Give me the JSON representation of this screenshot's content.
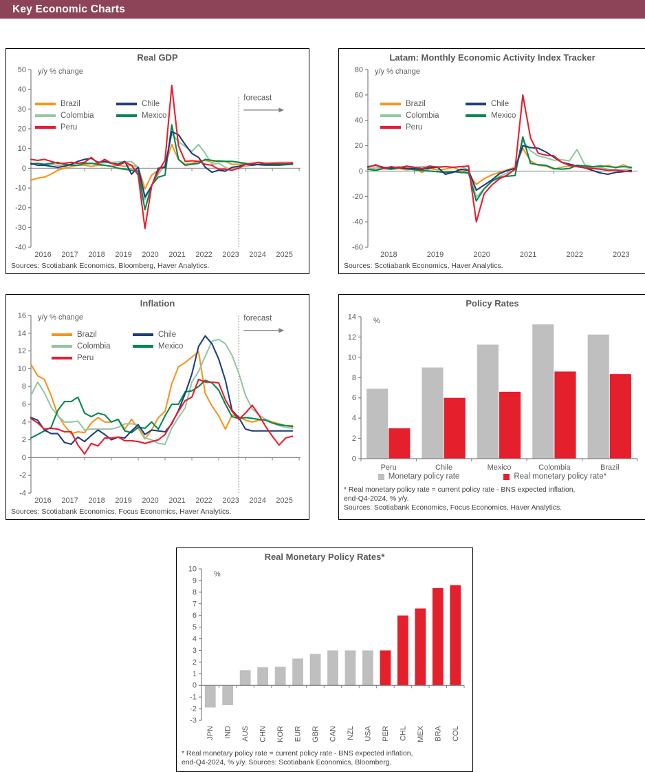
{
  "header": {
    "title": "Key Economic Charts",
    "bg_color": "#8E4458"
  },
  "colors": {
    "brazil": "#F7941E",
    "chile": "#1F3E7D",
    "colombia": "#94C7A4",
    "mexico": "#00894F",
    "peru": "#EB1C2D",
    "gray_bar": "#BFBFBF",
    "red_bar": "#E3202C"
  },
  "chart_data": [
    {
      "type": "line",
      "title": "Real GDP",
      "unit_label": "y/y % change",
      "source": "Sources: Scotiabank Economics, Bloomberg, Haver Analytics.",
      "x0": 2016.0,
      "dx": 0.25,
      "xlim": [
        2016.0,
        2026.05
      ],
      "ylim": [
        -40,
        50
      ],
      "ytick_step": 10,
      "x_years_labeled": [
        2016,
        2017,
        2018,
        2019,
        2020,
        2021,
        2022,
        2023,
        2024,
        2025
      ],
      "forecast": {
        "x": 2023.75,
        "label": "forecast",
        "label_y": 34.5,
        "arrow_y": 29.5,
        "top_y": 36
      },
      "legend": [
        {
          "label": "Brazil",
          "color": "#F7941E"
        },
        {
          "label": "Chile",
          "color": "#1F3E7D"
        },
        {
          "label": "Colombia",
          "color": "#94C7A4"
        },
        {
          "label": "Mexico",
          "color": "#00894F"
        },
        {
          "label": "Peru",
          "color": "#EB1C2D"
        }
      ],
      "series": [
        {
          "name": "Brazil",
          "color": "#F7941E",
          "values": [
            -6.0,
            -5.0,
            -4.5,
            -3.0,
            -1.0,
            0.0,
            0.8,
            1.5,
            1.5,
            1.0,
            1.5,
            1.5,
            1.0,
            1.5,
            1.0,
            1.5,
            0.5,
            -10.5,
            -3.5,
            -1.0,
            1.5,
            12.0,
            4.5,
            2.0,
            2.5,
            3.5,
            4.0,
            3.0,
            4.0,
            3.5,
            2.0,
            2.0,
            2.5,
            2.0,
            2.0,
            2.0,
            2.0,
            2.0,
            2.0,
            2.2
          ]
        },
        {
          "name": "Colombia",
          "color": "#94C7A4",
          "values": [
            2.5,
            2.5,
            1.5,
            2.0,
            1.5,
            1.5,
            2.0,
            1.5,
            2.0,
            2.5,
            2.5,
            2.8,
            3.0,
            3.2,
            3.2,
            3.4,
            0.5,
            -16.0,
            -8.5,
            -3.0,
            1.5,
            17.5,
            13.5,
            11.0,
            8.5,
            12.0,
            7.5,
            2.0,
            2.5,
            0.5,
            -1.0,
            1.0,
            1.0,
            1.5,
            2.0,
            2.5,
            2.8,
            3.0,
            3.0,
            3.0
          ]
        },
        {
          "name": "Mexico",
          "color": "#00894F",
          "values": [
            2.0,
            2.5,
            2.0,
            2.5,
            3.0,
            2.0,
            1.5,
            1.5,
            2.5,
            2.5,
            2.0,
            1.5,
            1.0,
            0.0,
            -0.5,
            -1.0,
            -1.5,
            -21.0,
            -8.5,
            -4.5,
            -3.5,
            22.0,
            4.5,
            1.5,
            2.0,
            2.5,
            4.5,
            4.0,
            3.5,
            3.5,
            3.5,
            3.0,
            2.5,
            2.0,
            1.8,
            1.5,
            1.5,
            1.5,
            1.8,
            2.0
          ]
        },
        {
          "name": "Chile",
          "color": "#1F3E7D",
          "values": [
            2.5,
            1.5,
            1.5,
            1.0,
            0.5,
            1.0,
            2.0,
            3.5,
            4.5,
            5.0,
            3.0,
            3.5,
            2.5,
            2.0,
            3.5,
            -3.0,
            0.5,
            -14.5,
            -9.0,
            0.0,
            0.5,
            18.5,
            17.0,
            12.0,
            7.5,
            5.5,
            0.5,
            -2.0,
            -1.0,
            -1.5,
            0.5,
            1.0,
            2.0,
            1.5,
            2.0,
            2.0,
            2.0,
            2.2,
            2.3,
            2.4
          ]
        },
        {
          "name": "Peru",
          "color": "#EB1C2D",
          "values": [
            4.5,
            4.0,
            4.5,
            3.5,
            2.5,
            2.5,
            3.0,
            2.5,
            3.0,
            5.5,
            2.5,
            4.5,
            2.5,
            1.5,
            3.0,
            1.5,
            -3.5,
            -30.5,
            -9.0,
            -1.5,
            4.0,
            42.0,
            11.5,
            3.5,
            3.8,
            3.5,
            2.0,
            1.5,
            -0.5,
            -0.5,
            -1.0,
            0.0,
            2.0,
            2.5,
            3.0,
            2.5,
            2.5,
            2.5,
            2.5,
            2.7
          ]
        }
      ]
    },
    {
      "type": "line",
      "title": "Latam: Monthly Economic Activity Index Tracker",
      "unit_label": "y/y % change",
      "source": "Sources: Scotiabank Economics, Haver Analytics.",
      "x0": 2018.0,
      "dx": 0.16667,
      "xlim": [
        2018.0,
        2023.8
      ],
      "ylim": [
        -60,
        80
      ],
      "ytick_step": 20,
      "x_years_labeled": [
        2018,
        2019,
        2020,
        2021,
        2022,
        2023
      ],
      "forecast": null,
      "legend": [
        {
          "label": "Brazil",
          "color": "#F7941E"
        },
        {
          "label": "Chile",
          "color": "#1F3E7D"
        },
        {
          "label": "Colombia",
          "color": "#94C7A4"
        },
        {
          "label": "Mexico",
          "color": "#00894F"
        },
        {
          "label": "Peru",
          "color": "#EB1C2D"
        }
      ],
      "series": [
        {
          "name": "Brazil",
          "color": "#F7941E",
          "values": [
            2.0,
            1.0,
            2.5,
            1.5,
            2.0,
            1.0,
            1.5,
            -1.0,
            2.0,
            1.0,
            1.5,
            3.0,
            0.5,
            -2.0,
            -10.5,
            -6.0,
            -3.0,
            -1.0,
            1.0,
            3.0,
            18.0,
            8.0,
            4.5,
            4.0,
            1.5,
            3.0,
            4.0,
            3.5,
            3.0,
            2.5,
            3.0,
            4.5,
            2.5,
            5.0,
            2.0
          ]
        },
        {
          "name": "Colombia",
          "color": "#94C7A4",
          "values": [
            2.0,
            2.5,
            3.0,
            2.5,
            3.5,
            3.0,
            3.0,
            3.5,
            3.0,
            3.5,
            3.5,
            3.0,
            3.5,
            1.0,
            -20.5,
            -14.0,
            -8.0,
            -4.0,
            -1.5,
            1.0,
            24.0,
            16.0,
            12.0,
            10.5,
            8.5,
            9.0,
            8.0,
            17.0,
            5.0,
            3.5,
            2.5,
            1.5,
            0.5,
            1.0,
            2.0
          ]
        },
        {
          "name": "Mexico",
          "color": "#00894F",
          "values": [
            1.5,
            0.5,
            2.0,
            1.5,
            2.5,
            2.0,
            1.0,
            0.5,
            0.0,
            -0.5,
            -1.0,
            -0.5,
            -1.0,
            -1.5,
            -23.5,
            -14.0,
            -8.0,
            -5.0,
            -4.0,
            -3.5,
            27.0,
            6.0,
            5.0,
            4.5,
            2.0,
            1.5,
            2.0,
            4.5,
            4.0,
            3.5,
            4.0,
            3.5,
            3.0,
            3.5,
            3.0
          ]
        },
        {
          "name": "Chile",
          "color": "#1F3E7D",
          "values": [
            3.5,
            4.5,
            3.0,
            2.5,
            3.0,
            2.0,
            2.0,
            1.5,
            2.5,
            3.0,
            -2.5,
            -1.0,
            1.5,
            0.5,
            -15.0,
            -11.0,
            -7.0,
            -2.0,
            0.5,
            2.0,
            20.0,
            18.5,
            18.0,
            15.0,
            11.0,
            7.0,
            5.5,
            4.0,
            2.5,
            0.5,
            -1.5,
            -2.5,
            -1.0,
            -0.5,
            0.5
          ]
        },
        {
          "name": "Peru",
          "color": "#EB1C2D",
          "values": [
            3.0,
            5.0,
            2.0,
            3.5,
            2.5,
            4.0,
            3.0,
            2.0,
            4.0,
            3.0,
            3.5,
            3.0,
            3.5,
            4.0,
            -40.0,
            -18.0,
            -11.0,
            -6.0,
            -3.0,
            1.5,
            60.0,
            26.0,
            14.0,
            12.5,
            12.0,
            7.0,
            4.5,
            3.5,
            2.5,
            2.0,
            1.5,
            0.5,
            1.0,
            0.0,
            -0.5
          ]
        }
      ]
    },
    {
      "type": "line",
      "title": "Inflation",
      "unit_label": "y/y % change",
      "source": "Sources: Scotiabank Economics, Focus Economics, Haver Analytics.",
      "x0": 2016.0,
      "dx": 0.25,
      "xlim": [
        2016.0,
        2026.05
      ],
      "ylim": [
        -4,
        16
      ],
      "ytick_step": 2,
      "x_years_labeled": [
        2016,
        2017,
        2018,
        2019,
        2020,
        2021,
        2022,
        2023,
        2024,
        2025
      ],
      "forecast": {
        "x": 2023.75,
        "label": "forecast",
        "label_y": 15.4,
        "arrow_y": 14.3,
        "top_y": 16
      },
      "legend": [
        {
          "label": "Brazil",
          "color": "#F7941E"
        },
        {
          "label": "Chile",
          "color": "#1F3E7D"
        },
        {
          "label": "Colombia",
          "color": "#94C7A4"
        },
        {
          "label": "Mexico",
          "color": "#00894F"
        },
        {
          "label": "Peru",
          "color": "#EB1C2D"
        }
      ],
      "series": [
        {
          "name": "Brazil",
          "color": "#F7941E",
          "values": [
            10.5,
            9.2,
            8.8,
            7.0,
            4.8,
            3.6,
            2.7,
            2.9,
            2.8,
            3.9,
            4.5,
            4.0,
            4.0,
            4.3,
            3.2,
            4.3,
            3.3,
            2.1,
            3.1,
            4.5,
            5.2,
            8.3,
            10.2,
            10.7,
            11.3,
            11.9,
            7.2,
            5.8,
            4.7,
            3.2,
            4.8,
            4.6,
            4.2,
            4.0,
            4.2,
            4.3,
            4.0,
            3.8,
            3.6,
            3.6
          ]
        },
        {
          "name": "Colombia",
          "color": "#94C7A4",
          "values": [
            7.0,
            8.5,
            7.3,
            5.7,
            4.7,
            4.0,
            4.0,
            4.1,
            3.1,
            3.2,
            3.2,
            3.2,
            3.2,
            3.4,
            3.8,
            3.8,
            3.7,
            2.2,
            2.0,
            1.6,
            1.5,
            3.3,
            4.5,
            5.6,
            8.5,
            9.7,
            11.4,
            13.1,
            13.3,
            12.8,
            11.5,
            9.5,
            7.0,
            5.5,
            4.8,
            4.3,
            3.9,
            3.6,
            3.4,
            3.3
          ]
        },
        {
          "name": "Mexico",
          "color": "#00894F",
          "values": [
            2.2,
            2.6,
            3.0,
            3.4,
            5.3,
            6.3,
            6.3,
            6.8,
            5.0,
            4.6,
            5.0,
            4.8,
            4.0,
            4.3,
            3.0,
            2.8,
            3.4,
            3.3,
            4.0,
            3.2,
            4.7,
            6.0,
            6.0,
            7.4,
            7.5,
            8.0,
            8.7,
            8.4,
            7.6,
            6.0,
            4.6,
            4.4,
            4.5,
            4.4,
            4.3,
            4.2,
            3.9,
            3.7,
            3.6,
            3.5
          ]
        },
        {
          "name": "Chile",
          "color": "#1F3E7D",
          "values": [
            4.5,
            4.2,
            3.1,
            2.7,
            2.7,
            1.7,
            1.5,
            2.3,
            1.8,
            2.5,
            3.1,
            2.6,
            2.0,
            2.3,
            2.2,
            3.0,
            3.7,
            2.6,
            3.1,
            3.0,
            2.9,
            3.8,
            5.3,
            7.2,
            9.4,
            12.5,
            13.7,
            12.8,
            11.1,
            8.7,
            5.3,
            4.5,
            3.2,
            3.0,
            3.0,
            3.0,
            3.0,
            3.0,
            3.0,
            3.0
          ]
        },
        {
          "name": "Peru",
          "color": "#EB1C2D",
          "values": [
            4.4,
            3.9,
            3.2,
            3.3,
            3.2,
            2.9,
            2.9,
            1.4,
            0.4,
            1.6,
            1.3,
            2.2,
            2.2,
            2.3,
            1.9,
            1.9,
            1.8,
            1.6,
            1.8,
            2.0,
            2.6,
            3.9,
            5.2,
            6.4,
            6.8,
            8.8,
            8.5,
            8.5,
            8.4,
            6.5,
            5.2,
            4.3,
            5.0,
            5.9,
            4.8,
            3.5,
            2.4,
            1.4,
            2.2,
            2.4
          ]
        }
      ]
    },
    {
      "type": "bar-grouped",
      "title": "Policy Rates",
      "unit_label": "%",
      "ylim": [
        0,
        14
      ],
      "ytick_step": 2,
      "categories": [
        "Peru",
        "Chile",
        "Mexico",
        "Colombia",
        "Brazil"
      ],
      "series": [
        {
          "name": "Monetary policy rate",
          "color": "#BFBFBF",
          "values": [
            6.9,
            9.0,
            11.25,
            13.25,
            12.25
          ]
        },
        {
          "name": "Real monetary policy rate*",
          "color": "#E3202C",
          "values": [
            3.0,
            6.0,
            6.6,
            8.6,
            8.35
          ]
        }
      ],
      "legend": [
        {
          "label": "Monetary policy rate",
          "color": "#BFBFBF"
        },
        {
          "label": "Real monetary policy rate*",
          "color": "#E3202C"
        }
      ],
      "footnote_lines": [
        "* Real monetary policy rate = current policy rate - BNS expected inflation,",
        "end-Q4-2024, % y/y.",
        "Sources: Scotiabank Economics, Focus Economics, Haver Analytics."
      ]
    },
    {
      "type": "bar",
      "title": "Real Monetary Policy Rates*",
      "unit_label": "%",
      "ylim": [
        -3,
        10
      ],
      "ytick_step": 1,
      "categories": [
        "JPN",
        "IND",
        "AUS",
        "CHN",
        "KOR",
        "EUR",
        "GBR",
        "CAN",
        "NZL",
        "USA",
        "PER",
        "CHL",
        "MEX",
        "BRA",
        "COL"
      ],
      "values": [
        -1.9,
        -1.7,
        1.3,
        1.55,
        1.6,
        2.3,
        2.7,
        3.0,
        3.0,
        3.0,
        3.0,
        6.0,
        6.6,
        8.35,
        8.6
      ],
      "bar_colors": [
        "#BFBFBF",
        "#BFBFBF",
        "#BFBFBF",
        "#BFBFBF",
        "#BFBFBF",
        "#BFBFBF",
        "#BFBFBF",
        "#BFBFBF",
        "#BFBFBF",
        "#BFBFBF",
        "#E3202C",
        "#E3202C",
        "#E3202C",
        "#E3202C",
        "#E3202C"
      ],
      "footnote_lines": [
        "* Real monetary policy rate = current policy rate - BNS expected inflation,",
        "end-Q4-2024, % y/y. Sources: Scotiabank Economics, Bloomberg."
      ]
    }
  ]
}
